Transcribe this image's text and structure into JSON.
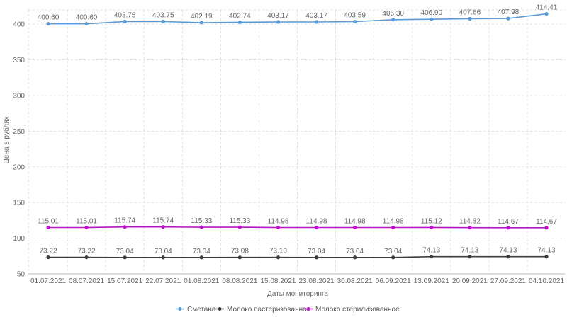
{
  "chart_data": {
    "type": "line",
    "title": "",
    "xlabel": "Даты мониторинга",
    "ylabel": "Цена в рублях",
    "ylim": [
      50,
      420
    ],
    "yticks": [
      50,
      100,
      150,
      200,
      250,
      300,
      350,
      400
    ],
    "grid": true,
    "legend_position": "bottom",
    "categories": [
      "01.07.2021",
      "08.07.2021",
      "15.07.2021",
      "22.07.2021",
      "01.08.2021",
      "08.08.2021",
      "15.08.2021",
      "23.08.2021",
      "30.08.2021",
      "06.09.2021",
      "13.09.2021",
      "20.09.2021",
      "27.09.2021",
      "04.10.2021"
    ],
    "series": [
      {
        "name": "Сметана",
        "color": "#5b9bd5",
        "values": [
          400.6,
          400.6,
          403.75,
          403.75,
          402.19,
          402.74,
          403.17,
          403.17,
          403.59,
          406.3,
          406.9,
          407.66,
          407.98,
          414.41
        ],
        "labels": [
          "400.60",
          "400.60",
          "403.75",
          "403.75",
          "402.19",
          "402.74",
          "403.17",
          "403.17",
          "403.59",
          "406.30",
          "406.90",
          "407.66",
          "407.98",
          "414.41"
        ]
      },
      {
        "name": "Молоко пастеризованное",
        "color": "#3d3d3d",
        "values": [
          73.22,
          73.22,
          73.04,
          73.04,
          73.04,
          73.08,
          73.1,
          73.04,
          73.04,
          73.04,
          74.13,
          74.13,
          74.13,
          74.13
        ],
        "labels": [
          "73.22",
          "73.22",
          "73.04",
          "73.04",
          "73.04",
          "73.08",
          "73.10",
          "73.04",
          "73.04",
          "73.04",
          "74.13",
          "74.13",
          "74.13",
          "74.13"
        ]
      },
      {
        "name": "Молоко стерилизованное",
        "color": "#b418c2",
        "values": [
          115.01,
          115.01,
          115.74,
          115.74,
          115.33,
          115.33,
          114.98,
          114.98,
          114.98,
          114.98,
          115.12,
          114.82,
          114.67,
          114.67
        ],
        "labels": [
          "115.01",
          "115.01",
          "115.74",
          "115.74",
          "115.33",
          "115.33",
          "114.98",
          "114.98",
          "114.98",
          "114.98",
          "115.12",
          "114.82",
          "114.67",
          "114.67"
        ]
      }
    ]
  }
}
